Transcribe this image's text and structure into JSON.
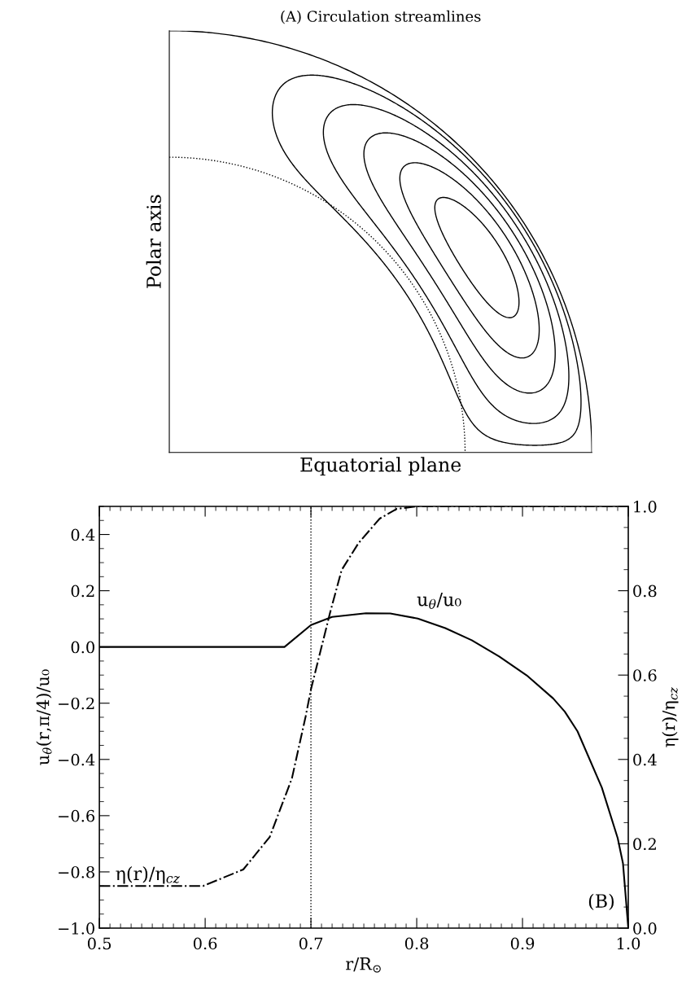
{
  "chart_data": [
    {
      "type": "other",
      "title": "(A) Circulation streamlines",
      "xlabel": "Equatorial plane",
      "ylabel": "Polar axis"
    },
    {
      "type": "line",
      "xlabel": "r/R$_{⊙}$",
      "ylabel": "u$_{θ}$(r,π/4)/u₀",
      "y2label": "η(r)/η$_{cz}$",
      "xlim": [
        0.5,
        1.0
      ],
      "xticks": [
        0.5,
        0.6,
        0.7,
        0.8,
        0.9,
        {
          "value": 1.0,
          "label": "1.0"
        }
      ],
      "ylim": [
        -1.0,
        0.5
      ],
      "yticks": [
        {
          "value": -1.0,
          "label": "−1.0"
        },
        {
          "value": -0.8,
          "label": "−0.8"
        },
        {
          "value": -0.6,
          "label": "−0.6"
        },
        {
          "value": -0.4,
          "label": "−0.4"
        },
        {
          "value": -0.2,
          "label": "−0.2"
        },
        {
          "value": 0.0,
          "label": "0.0"
        },
        0.2,
        0.4
      ],
      "y2lim": [
        0.0,
        1.0
      ],
      "y2ticks": [
        {
          "value": 0.0,
          "label": "0.0"
        },
        0.2,
        0.4,
        0.6,
        0.8,
        {
          "value": 1.0,
          "label": "1.0"
        }
      ],
      "series": [
        {
          "color": "#000000",
          "line_style": "solid",
          "x": [
            0.5,
            0.675,
            0.7,
            0.72,
            0.752,
            0.775,
            0.801,
            0.827,
            0.852,
            0.878,
            0.904,
            0.929,
            0.94,
            0.952,
            0.975,
            0.99,
            0.995,
            1.0
          ],
          "values": [
            0.0,
            0.0,
            0.078,
            0.107,
            0.12,
            0.119,
            0.101,
            0.067,
            0.024,
            -0.034,
            -0.101,
            -0.183,
            -0.23,
            -0.3,
            -0.5,
            -0.68,
            -0.77,
            -1.0
          ]
        },
        {
          "color": "#000000",
          "line_style": "dashdot",
          "axis": "y2",
          "x": [
            0.5,
            0.598,
            0.636,
            0.661,
            0.682,
            0.695,
            0.7,
            0.718,
            0.729,
            0.745,
            0.765,
            0.781,
            0.8,
            1.0
          ],
          "values": [
            0.1,
            0.1,
            0.139,
            0.216,
            0.355,
            0.502,
            0.566,
            0.747,
            0.849,
            0.913,
            0.971,
            0.994,
            1.0,
            1.0
          ]
        }
      ],
      "ref_lines": [
        {
          "axis": "x",
          "value": 0.7,
          "color": "#000000",
          "line_style": "dotted"
        }
      ],
      "annotations": [
        "u$_{θ}$/u₀",
        "η(r)/η$_{cz}$",
        "(B)"
      ],
      "grid": false,
      "legend": false
    }
  ]
}
